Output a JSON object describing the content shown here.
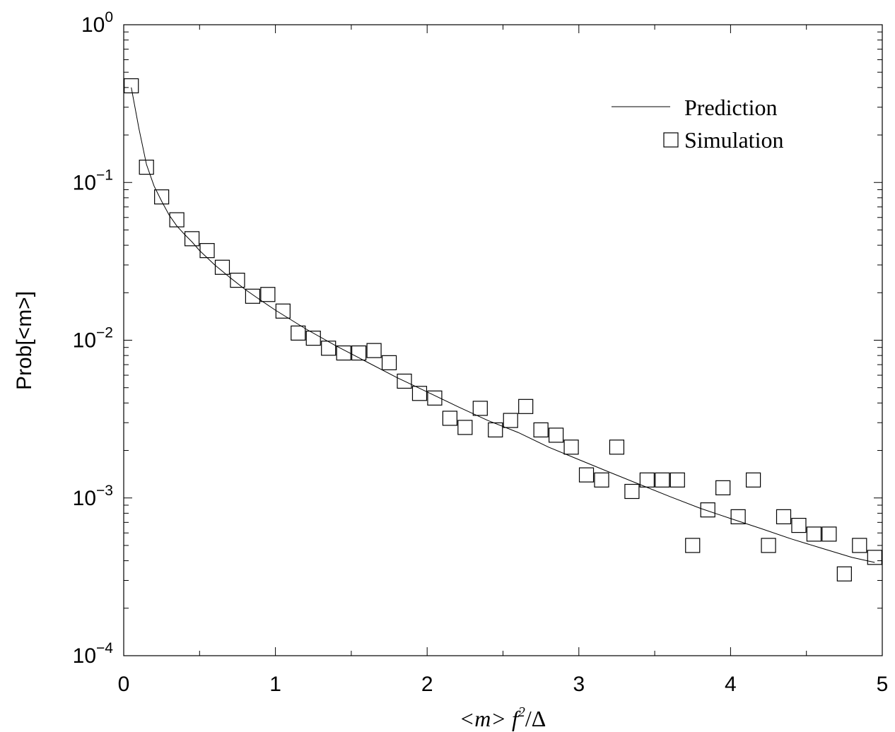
{
  "chart_data": {
    "type": "scatter",
    "title": "",
    "xlabel": "<m> f²/Δ",
    "ylabel": "Prob[<m>]",
    "xlim": [
      0,
      5
    ],
    "ylim": [
      0.0001,
      1
    ],
    "yscale": "log",
    "grid": false,
    "legend_position": "top-right",
    "x_ticks": [
      "0",
      "1",
      "2",
      "3",
      "4",
      "5"
    ],
    "y_ticks": [
      {
        "base": "10",
        "exp": "0"
      },
      {
        "base": "10",
        "exp": "−1"
      },
      {
        "base": "10",
        "exp": "−2"
      },
      {
        "base": "10",
        "exp": "−3"
      },
      {
        "base": "10",
        "exp": "−4"
      }
    ],
    "series": [
      {
        "name": "Prediction",
        "kind": "line",
        "x": [
          0.05,
          0.1,
          0.15,
          0.2,
          0.25,
          0.3,
          0.35,
          0.4,
          0.45,
          0.5,
          0.6,
          0.7,
          0.8,
          0.9,
          1.0,
          1.2,
          1.4,
          1.6,
          1.8,
          2.0,
          2.2,
          2.4,
          2.6,
          2.8,
          3.0,
          3.2,
          3.4,
          3.6,
          3.8,
          4.0,
          4.2,
          4.4,
          4.6,
          4.8,
          4.95
        ],
        "y": [
          0.4,
          0.22,
          0.13,
          0.095,
          0.076,
          0.062,
          0.053,
          0.047,
          0.042,
          0.037,
          0.03,
          0.025,
          0.021,
          0.018,
          0.0155,
          0.0118,
          0.0092,
          0.0073,
          0.0058,
          0.0047,
          0.0038,
          0.0031,
          0.0026,
          0.0021,
          0.00175,
          0.00146,
          0.00122,
          0.00102,
          0.00086,
          0.00074,
          0.00064,
          0.00055,
          0.00048,
          0.00042,
          0.00039
        ]
      },
      {
        "name": "Simulation",
        "kind": "scatter",
        "marker": "square",
        "x": [
          0.05,
          0.15,
          0.25,
          0.35,
          0.45,
          0.55,
          0.65,
          0.75,
          0.85,
          0.95,
          1.05,
          1.15,
          1.25,
          1.35,
          1.45,
          1.55,
          1.65,
          1.75,
          1.85,
          1.95,
          2.05,
          2.15,
          2.25,
          2.35,
          2.45,
          2.55,
          2.65,
          2.75,
          2.85,
          2.95,
          3.05,
          3.15,
          3.25,
          3.35,
          3.45,
          3.55,
          3.65,
          3.75,
          3.85,
          3.95,
          4.05,
          4.15,
          4.25,
          4.35,
          4.45,
          4.55,
          4.65,
          4.75,
          4.85,
          4.95
        ],
        "y": [
          0.41,
          0.125,
          0.081,
          0.058,
          0.044,
          0.037,
          0.029,
          0.024,
          0.019,
          0.0195,
          0.0153,
          0.0111,
          0.0103,
          0.0089,
          0.0083,
          0.0083,
          0.0086,
          0.0072,
          0.0055,
          0.0046,
          0.0043,
          0.0032,
          0.0028,
          0.0037,
          0.0027,
          0.0031,
          0.0038,
          0.0027,
          0.0025,
          0.0021,
          0.0014,
          0.0013,
          0.0021,
          0.0011,
          0.0013,
          0.0013,
          0.0013,
          0.0005,
          0.00084,
          0.00116,
          0.00076,
          0.0013,
          0.0005,
          0.00076,
          0.00067,
          0.00059,
          0.00059,
          0.00033,
          0.0005,
          0.00042
        ]
      }
    ]
  },
  "legend": {
    "line_label": "Prediction",
    "marker_label": "Simulation"
  },
  "axes": {
    "x_title_m": "<m>",
    "x_title_f": "f",
    "x_title_exp": "2",
    "x_title_rest": "/Δ",
    "y_title": "Prob[<m>]"
  }
}
